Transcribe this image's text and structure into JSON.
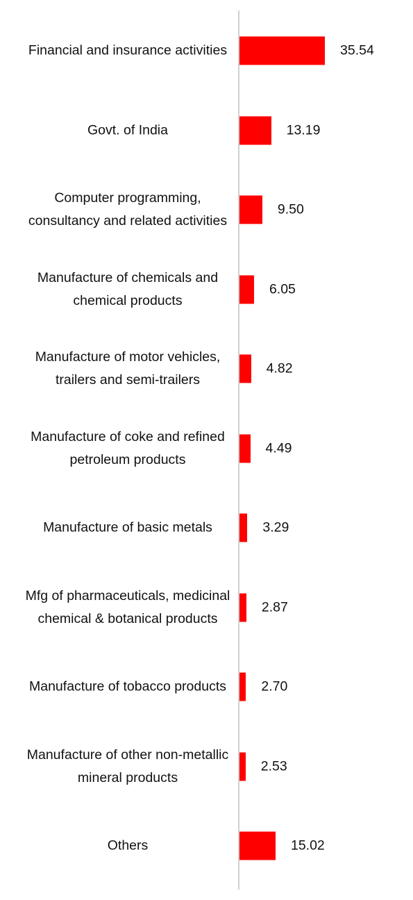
{
  "chart_data": {
    "type": "bar",
    "orientation": "horizontal",
    "color": "#ff0000",
    "categories": [
      "Financial and insurance activities",
      "Govt. of India",
      "Computer programming, consultancy and related activities",
      "Manufacture of chemicals and chemical products",
      "Manufacture of motor vehicles, trailers and semi-trailers",
      "Manufacture of coke and refined petroleum products",
      "Manufacture of basic metals",
      "Mfg of pharmaceuticals, medicinal chemical & botanical products",
      "Manufacture of tobacco products",
      "Manufacture of other non-metallic mineral products",
      "Others"
    ],
    "values": [
      35.54,
      13.19,
      9.5,
      6.05,
      4.82,
      4.49,
      3.29,
      2.87,
      2.7,
      2.53,
      15.02
    ],
    "value_labels": [
      "35.54",
      "13.19",
      "9.50",
      "6.05",
      "4.82",
      "4.49",
      "3.29",
      "2.87",
      "2.70",
      "2.53",
      "15.02"
    ]
  }
}
